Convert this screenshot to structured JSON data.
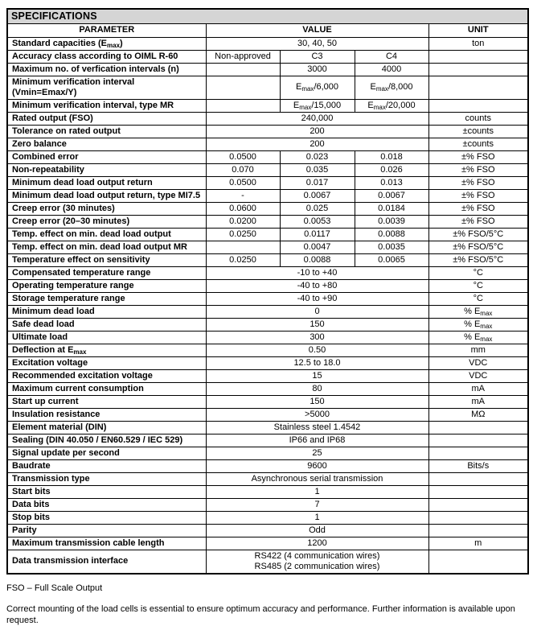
{
  "page": {
    "title": "SPECIFICATIONS",
    "footnote": "FSO – Full Scale Output",
    "note": "Correct mounting of the load cells is essential to ensure optimum accuracy and performance. Further information is available upon request."
  },
  "table": {
    "columns": {
      "parameter": "PARAMETER",
      "value": "VALUE",
      "unit": "UNIT"
    },
    "rows": [
      {
        "param": "Standard capacities (E{max})",
        "span": "full",
        "values": [
          "30, 40, 50"
        ],
        "unit": "ton"
      },
      {
        "param": "Accuracy class according to OIML R-60",
        "span": "cols",
        "values": [
          "Non-approved",
          "C3",
          "C4"
        ],
        "unit": ""
      },
      {
        "param": "Maximum no. of verfication intervals (n)",
        "span": "cols",
        "values": [
          "",
          "3000",
          "4000"
        ],
        "unit": ""
      },
      {
        "param": "Minimum verification interval (Vmin=Emax/Y)",
        "span": "cols",
        "values": [
          "",
          "E{max}/6,000",
          "E{max}/8,000"
        ],
        "unit": ""
      },
      {
        "param": "Minimum verification interval, type MR",
        "span": "cols",
        "values": [
          "",
          "E{max}/15,000",
          "E{max}/20,000"
        ],
        "unit": ""
      },
      {
        "param": "Rated output (FSO)",
        "span": "full",
        "values": [
          "240,000"
        ],
        "unit": "counts"
      },
      {
        "param": "Tolerance on rated output",
        "span": "full",
        "values": [
          "200"
        ],
        "unit": "±counts"
      },
      {
        "param": "Zero balance",
        "span": "full",
        "values": [
          "200"
        ],
        "unit": "±counts"
      },
      {
        "param": "Combined error",
        "span": "cols",
        "values": [
          "0.0500",
          "0.023",
          "0.018"
        ],
        "unit": "±% FSO"
      },
      {
        "param": "Non-repeatability",
        "span": "cols",
        "values": [
          "0.070",
          "0.035",
          "0.026"
        ],
        "unit": "±% FSO"
      },
      {
        "param": "Minimum dead load output return",
        "span": "cols",
        "values": [
          "0.0500",
          "0.017",
          "0.013"
        ],
        "unit": "±% FSO"
      },
      {
        "param": "Minimum dead load output return, type MI7.5",
        "span": "cols",
        "values": [
          "-",
          "0.0067",
          "0.0067"
        ],
        "unit": "±% FSO"
      },
      {
        "param": "Creep error (30 minutes)",
        "span": "cols",
        "values": [
          "0.0600",
          "0.025",
          "0.0184"
        ],
        "unit": "±% FSO"
      },
      {
        "param": "Creep error (20–30 minutes)",
        "span": "cols",
        "values": [
          "0.0200",
          "0.0053",
          "0.0039"
        ],
        "unit": "±% FSO"
      },
      {
        "param": "Temp. effect on min. dead load output",
        "span": "cols",
        "values": [
          "0.0250",
          "0.0117",
          "0.0088"
        ],
        "unit": "±% FSO/5°C"
      },
      {
        "param": "Temp. effect on min. dead load output MR",
        "span": "cols",
        "values": [
          "",
          "0.0047",
          "0.0035"
        ],
        "unit": "±% FSO/5°C"
      },
      {
        "param": "Temperature effect on sensitivity",
        "span": "cols",
        "values": [
          "0.0250",
          "0.0088",
          "0.0065"
        ],
        "unit": "±% FSO/5°C"
      },
      {
        "param": "Compensated temperature range",
        "span": "full",
        "values": [
          "-10 to +40"
        ],
        "unit": "°C"
      },
      {
        "param": "Operating temperature range",
        "span": "full",
        "values": [
          "-40 to +80"
        ],
        "unit": "°C"
      },
      {
        "param": "Storage temperature range",
        "span": "full",
        "values": [
          "-40 to +90"
        ],
        "unit": "°C"
      },
      {
        "param": "Minimum dead load",
        "span": "full",
        "values": [
          "0"
        ],
        "unit": "% E{max}"
      },
      {
        "param": "Safe dead load",
        "span": "full",
        "values": [
          "150"
        ],
        "unit": "% E{max}"
      },
      {
        "param": "Ultimate load",
        "span": "full",
        "values": [
          "300"
        ],
        "unit": "% E{max}"
      },
      {
        "param": "Deflection at E{max}",
        "span": "full",
        "values": [
          "0.50"
        ],
        "unit": "mm"
      },
      {
        "param": "Excitation voltage",
        "span": "full",
        "values": [
          "12.5 to 18.0"
        ],
        "unit": "VDC"
      },
      {
        "param": "Recommended excitation voltage",
        "span": "full",
        "values": [
          "15"
        ],
        "unit": "VDC"
      },
      {
        "param": "Maximum current consumption",
        "span": "full",
        "values": [
          "80"
        ],
        "unit": "mA"
      },
      {
        "param": "Start up current",
        "span": "full",
        "values": [
          "150"
        ],
        "unit": "mA"
      },
      {
        "param": "Insulation resistance",
        "span": "full",
        "values": [
          ">5000"
        ],
        "unit": "MΩ"
      },
      {
        "param": "Element material (DIN)",
        "span": "full",
        "values": [
          "Stainless steel 1.4542"
        ],
        "unit": ""
      },
      {
        "param": "Sealing (DIN 40.050 / EN60.529 / IEC 529)",
        "span": "full",
        "values": [
          "IP66 and IP68"
        ],
        "unit": ""
      },
      {
        "param": "Signal update per second",
        "span": "full",
        "values": [
          "25"
        ],
        "unit": ""
      },
      {
        "param": "Baudrate",
        "span": "full",
        "values": [
          "9600"
        ],
        "unit": "Bits/s"
      },
      {
        "param": "Transmission type",
        "span": "full",
        "values": [
          "Asynchronous serial transmission"
        ],
        "unit": ""
      },
      {
        "param": "Start bits",
        "span": "full",
        "values": [
          "1"
        ],
        "unit": ""
      },
      {
        "param": "Data bits",
        "span": "full",
        "values": [
          "7"
        ],
        "unit": ""
      },
      {
        "param": "Stop bits",
        "span": "full",
        "values": [
          "1"
        ],
        "unit": ""
      },
      {
        "param": "Parity",
        "span": "full",
        "values": [
          "Odd"
        ],
        "unit": ""
      },
      {
        "param": "Maximum transmission cable length",
        "span": "full",
        "values": [
          "1200"
        ],
        "unit": "m"
      },
      {
        "param": "Data transmission interface",
        "span": "full",
        "values": [
          "RS422 (4 communication wires)\nRS485 (2 communication wires)"
        ],
        "unit": ""
      }
    ]
  },
  "colors": {
    "title_bg": "#d5d5d5",
    "border": "#000000",
    "text": "#000000",
    "page_bg": "#ffffff"
  }
}
